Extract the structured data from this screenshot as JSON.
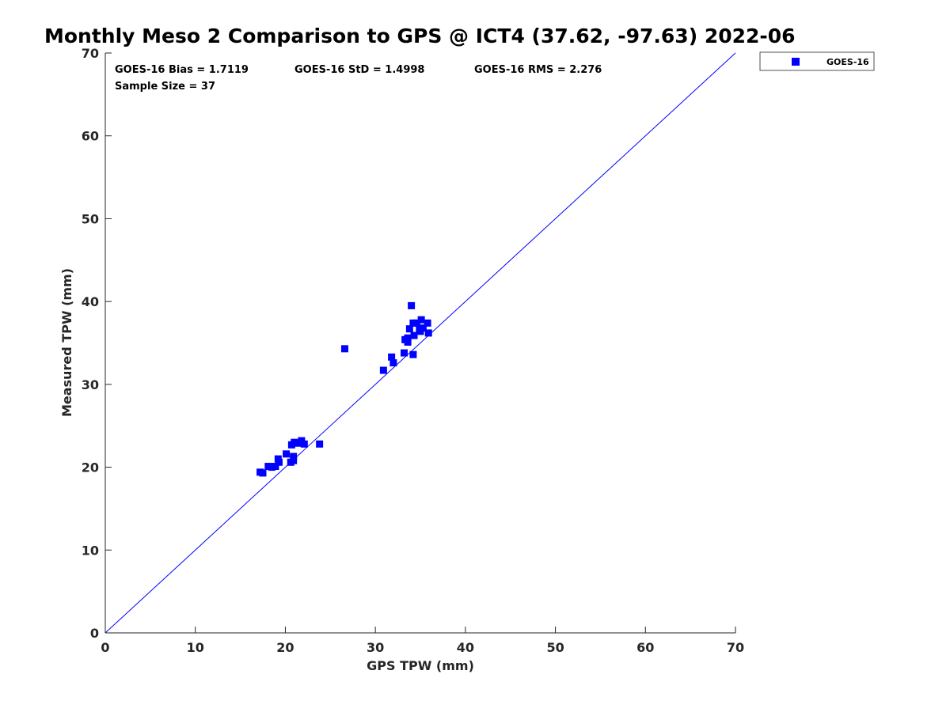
{
  "chart_data": {
    "type": "scatter",
    "title": "Monthly Meso 2 Comparison to GPS @ ICT4 (37.62, -97.63) 2022-06",
    "xlabel": "GPS TPW (mm)",
    "ylabel": "Measured TPW (mm)",
    "xlim": [
      0,
      70
    ],
    "ylim": [
      0,
      70
    ],
    "xticks": [
      "0",
      "10",
      "20",
      "30",
      "40",
      "50",
      "60",
      "70"
    ],
    "yticks": [
      "0",
      "10",
      "20",
      "30",
      "40",
      "50",
      "60",
      "70"
    ],
    "grid": false,
    "legend_position": "outside-top-right",
    "reference_line": {
      "type": "y=x",
      "color": "#0000ff"
    },
    "stats": {
      "bias": "GOES-16 Bias = 1.7119",
      "std": "GOES-16 StD = 1.4998",
      "rms": "GOES-16 RMS = 2.276",
      "sample": "Sample Size = 37"
    },
    "series": [
      {
        "name": "GOES-16",
        "color": "#0000ff",
        "marker": "square",
        "points": [
          [
            17.2,
            19.4
          ],
          [
            17.5,
            19.3
          ],
          [
            18.1,
            20.1
          ],
          [
            18.5,
            20.0
          ],
          [
            18.9,
            20.1
          ],
          [
            19.2,
            21.0
          ],
          [
            19.3,
            20.6
          ],
          [
            20.1,
            21.6
          ],
          [
            20.6,
            20.6
          ],
          [
            20.9,
            21.3
          ],
          [
            20.9,
            20.8
          ],
          [
            20.7,
            22.7
          ],
          [
            21.0,
            23.0
          ],
          [
            21.4,
            22.9
          ],
          [
            21.8,
            23.2
          ],
          [
            22.1,
            22.8
          ],
          [
            23.8,
            22.8
          ],
          [
            26.6,
            34.3
          ],
          [
            30.9,
            31.7
          ],
          [
            31.8,
            33.3
          ],
          [
            32.0,
            32.6
          ],
          [
            33.2,
            33.8
          ],
          [
            33.3,
            35.4
          ],
          [
            33.6,
            35.1
          ],
          [
            33.6,
            35.6
          ],
          [
            33.8,
            36.7
          ],
          [
            34.0,
            39.5
          ],
          [
            34.2,
            37.4
          ],
          [
            34.2,
            33.6
          ],
          [
            34.3,
            35.9
          ],
          [
            34.6,
            37.4
          ],
          [
            34.9,
            36.6
          ],
          [
            35.0,
            36.4
          ],
          [
            35.1,
            37.8
          ],
          [
            35.3,
            36.8
          ],
          [
            35.8,
            37.4
          ],
          [
            35.9,
            36.2
          ]
        ]
      }
    ]
  }
}
